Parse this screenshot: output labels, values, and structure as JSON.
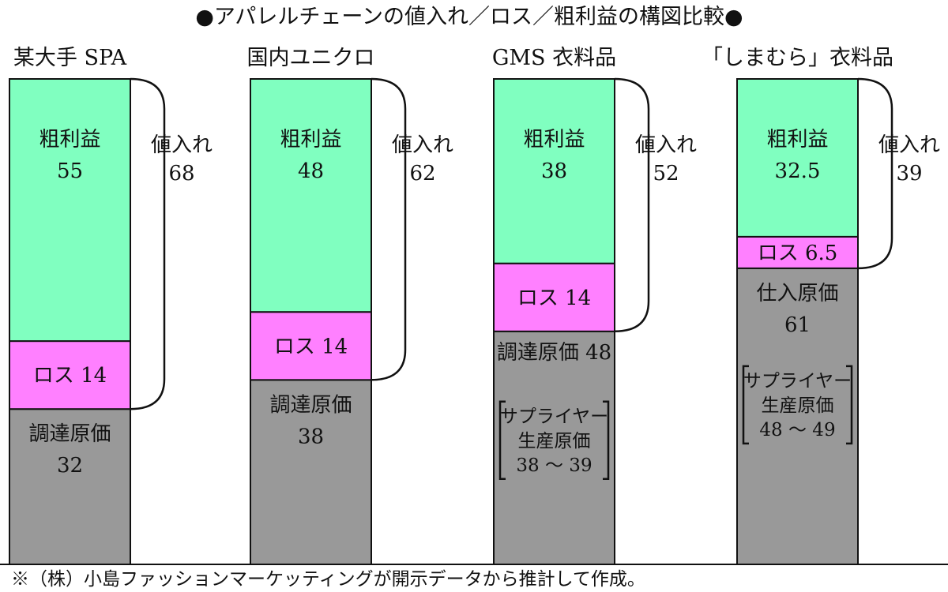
{
  "title": "●アパレルチェーンの値入れ／ロス／粗利益の構図比較●",
  "footnote": "※（株）小島ファッションマーケッティングが開示データから推計して作成。",
  "colors": {
    "gross_profit": "#80ffc0",
    "loss": "#ff80ff",
    "cost": "#999999",
    "stroke": "#111111"
  },
  "chart_data": {
    "type": "bar",
    "stacked": true,
    "ylim": [
      0,
      100
    ],
    "categories": [
      "某大手 SPA",
      "国内ユニクロ",
      "GMS 衣料品",
      "「しまむら」衣料品"
    ],
    "series_order_bottom_to_top": [
      "cost",
      "loss",
      "gross_profit"
    ],
    "bars": [
      {
        "category": "某大手 SPA",
        "cost": {
          "value": 32,
          "lines": [
            "調達原価",
            "32"
          ]
        },
        "loss": {
          "value": 14,
          "lines": [
            "ロス 14"
          ]
        },
        "gross_profit": {
          "value": 55,
          "lines": [
            "粗利益",
            "55"
          ]
        },
        "markup": {
          "value": 68,
          "lines": [
            "値入れ",
            "68"
          ]
        }
      },
      {
        "category": "国内ユニクロ",
        "cost": {
          "value": 38,
          "lines": [
            "調達原価",
            "38"
          ]
        },
        "loss": {
          "value": 14,
          "lines": [
            "ロス 14"
          ]
        },
        "gross_profit": {
          "value": 48,
          "lines": [
            "粗利益",
            "48"
          ]
        },
        "markup": {
          "value": 62,
          "lines": [
            "値入れ",
            "62"
          ]
        }
      },
      {
        "category": "GMS 衣料品",
        "cost": {
          "value": 48,
          "lines": [
            "調達原価 48"
          ]
        },
        "loss": {
          "value": 14,
          "lines": [
            "ロス 14"
          ]
        },
        "gross_profit": {
          "value": 38,
          "lines": [
            "粗利益",
            "38"
          ]
        },
        "markup": {
          "value": 52,
          "lines": [
            "値入れ",
            "52"
          ]
        },
        "supplier_note": {
          "lines": [
            "サプライヤー",
            "生産原価",
            "38 ～ 39"
          ]
        }
      },
      {
        "category": "「しまむら」衣料品",
        "cost": {
          "value": 61,
          "lines": [
            "仕入原価",
            "61"
          ]
        },
        "loss": {
          "value": 6.5,
          "lines": [
            "ロス 6.5"
          ]
        },
        "gross_profit": {
          "value": 32.5,
          "lines": [
            "粗利益",
            "32.5"
          ]
        },
        "markup": {
          "value": 39,
          "lines": [
            "値入れ",
            "39"
          ]
        },
        "supplier_note": {
          "lines": [
            "サプライヤー",
            "生産原価",
            "48 ～ 49"
          ]
        }
      }
    ]
  }
}
